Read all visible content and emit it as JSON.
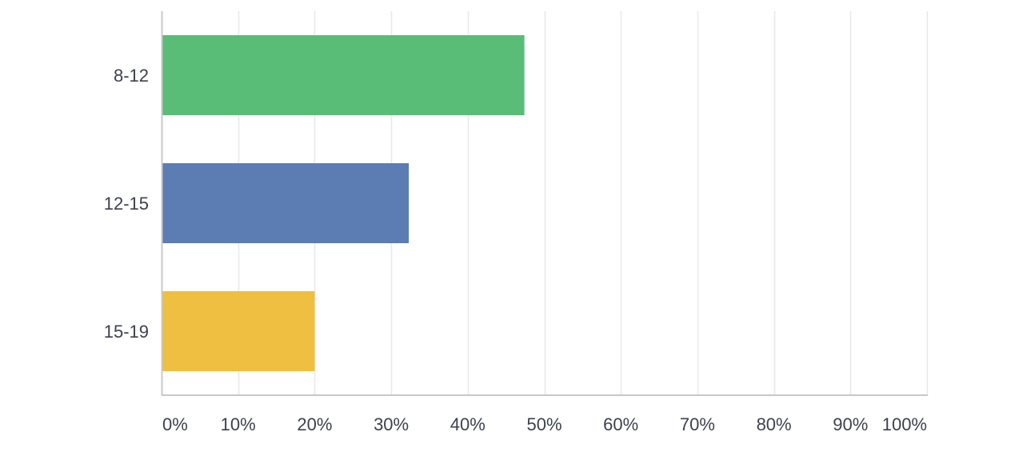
{
  "chart_data": {
    "type": "bar",
    "orientation": "horizontal",
    "categories": [
      "8-12",
      "12-15",
      "15-19"
    ],
    "values": [
      47.4,
      32.3,
      20.0
    ],
    "value_unit": "%",
    "xlim": [
      0,
      100
    ],
    "x_ticks": [
      "0%",
      "10%",
      "20%",
      "30%",
      "40%",
      "50%",
      "60%",
      "70%",
      "80%",
      "90%",
      "100%"
    ],
    "bar_colors": [
      "#59bd77",
      "#5b7db3",
      "#eebf41"
    ],
    "grid": true,
    "grid_color": "#e8e8e8",
    "axis_color": "#c8c8c8",
    "label_color": "#3c4150",
    "legend": "none"
  }
}
